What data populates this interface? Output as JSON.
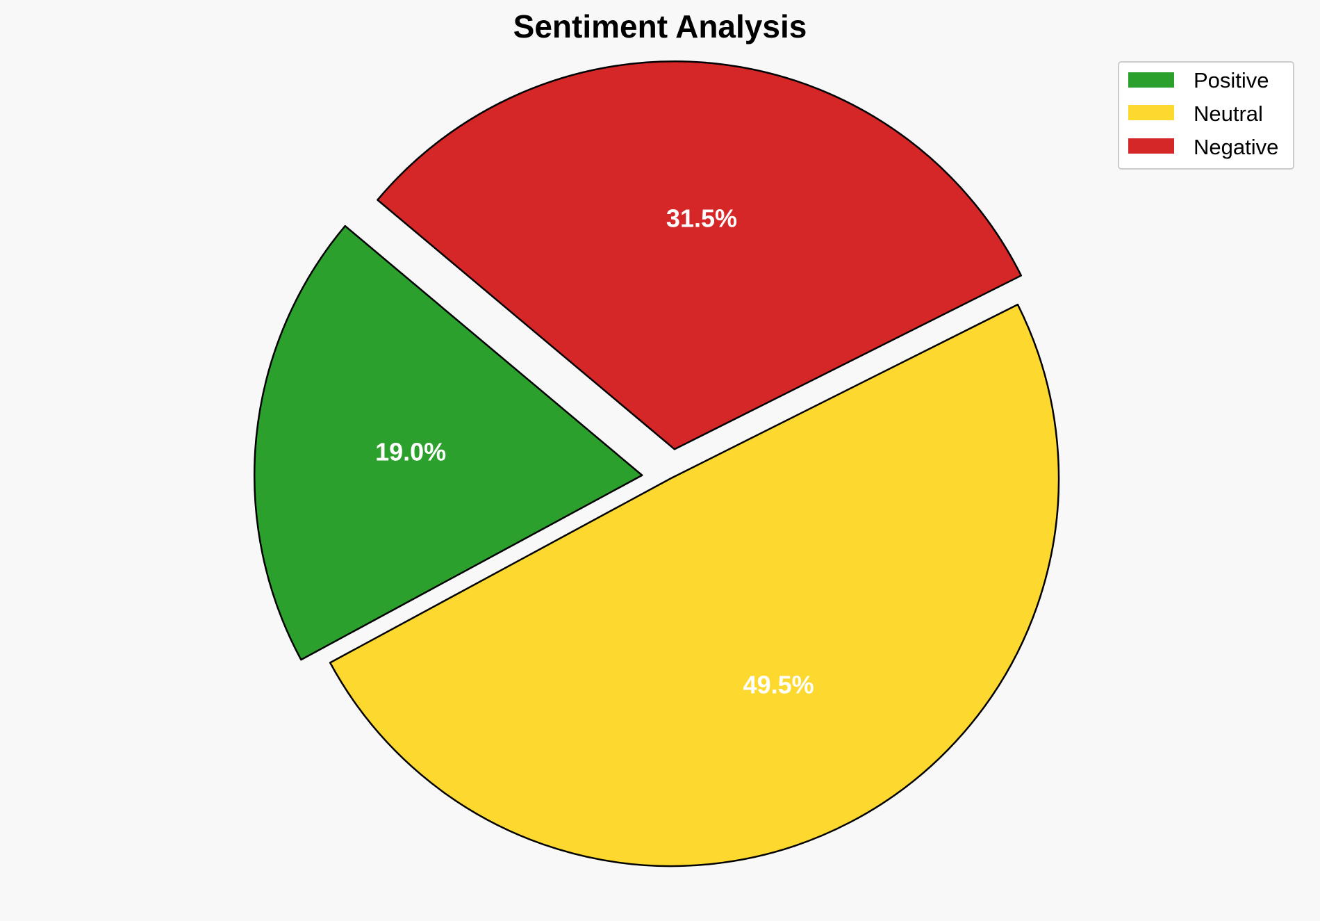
{
  "chart_data": {
    "type": "pie",
    "title": "Sentiment Analysis",
    "labels": [
      "Positive",
      "Neutral",
      "Negative"
    ],
    "values": [
      19.0,
      49.5,
      31.5
    ],
    "value_labels": [
      "19.0%",
      "49.5%",
      "31.5%"
    ],
    "colors": [
      "#2ca02c",
      "#fdd92f",
      "#d62728"
    ],
    "exploded": [
      true,
      false,
      true
    ],
    "start_angle_deg": 140,
    "direction": "counterclockwise",
    "legend_placement": "top-right",
    "slice_edge_color": "#000000"
  }
}
